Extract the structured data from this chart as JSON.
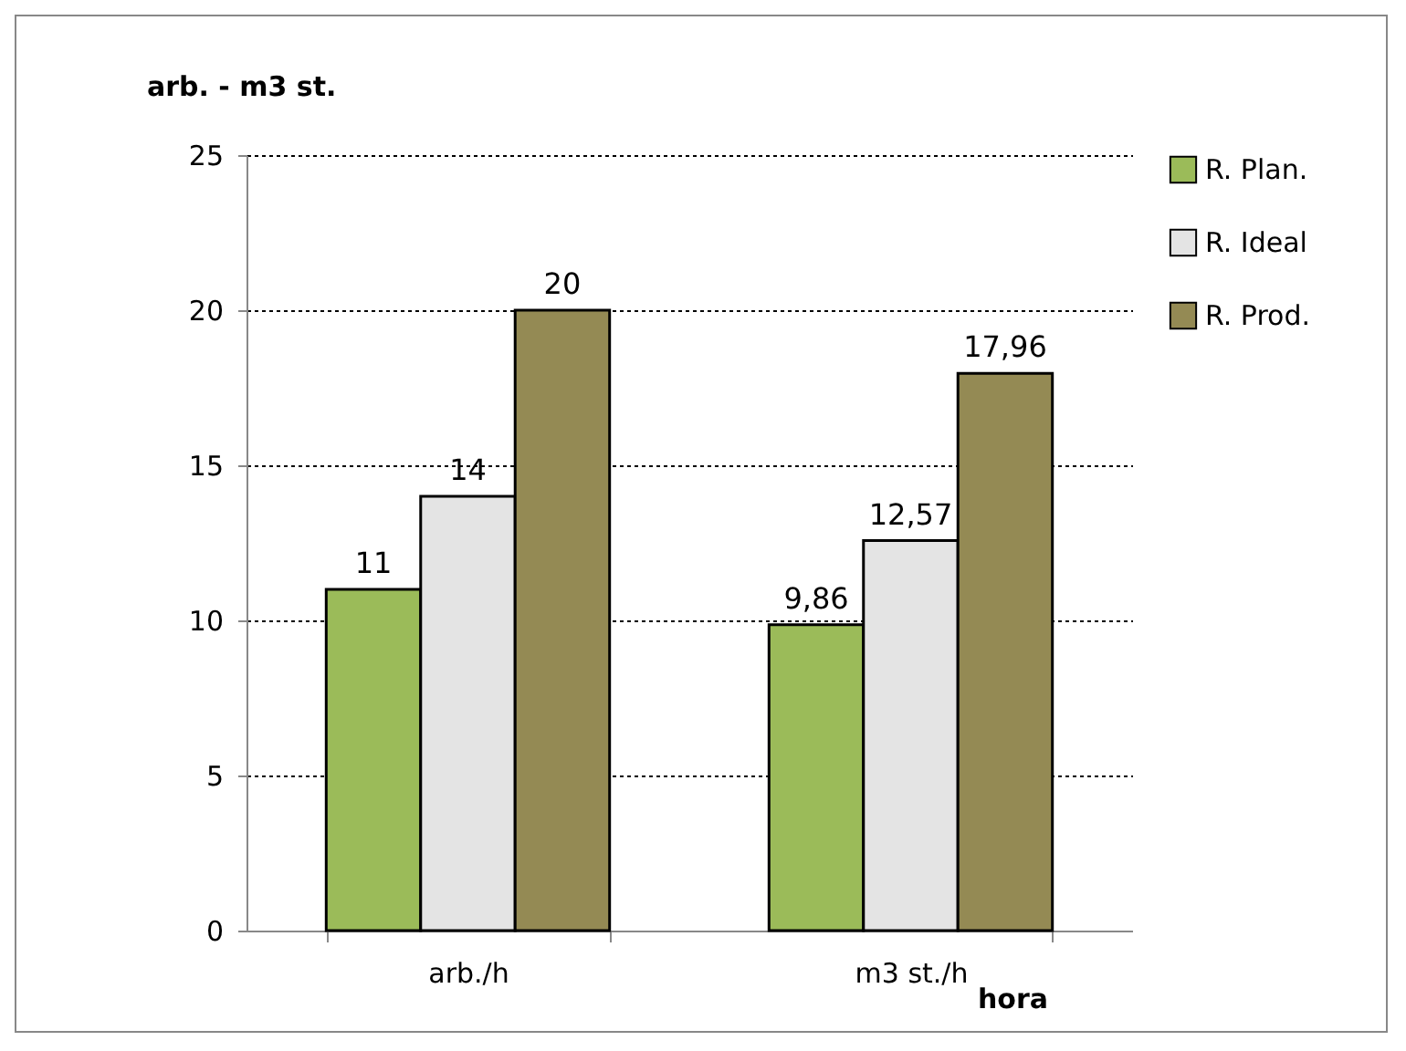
{
  "chart_data": {
    "type": "bar",
    "ylabel": "arb. - m3 st.",
    "xlabel": "hora",
    "categories": [
      "arb./h",
      "m3 st./h"
    ],
    "series": [
      {
        "name": "R. Plan.",
        "color": "#9bbb59",
        "values": [
          11,
          9.86
        ],
        "value_labels": [
          "11",
          "9,86"
        ]
      },
      {
        "name": "R. Ideal",
        "color": "#e4e4e4",
        "values": [
          14,
          12.57
        ],
        "value_labels": [
          "14",
          "12,57"
        ]
      },
      {
        "name": "R. Prod.",
        "color": "#948a54",
        "values": [
          20,
          17.96
        ],
        "value_labels": [
          "20",
          "17,96"
        ]
      }
    ],
    "ylim": [
      0,
      25
    ],
    "yticks": [
      0,
      5,
      10,
      15,
      20,
      25
    ],
    "grid": "y",
    "legend": "right"
  }
}
